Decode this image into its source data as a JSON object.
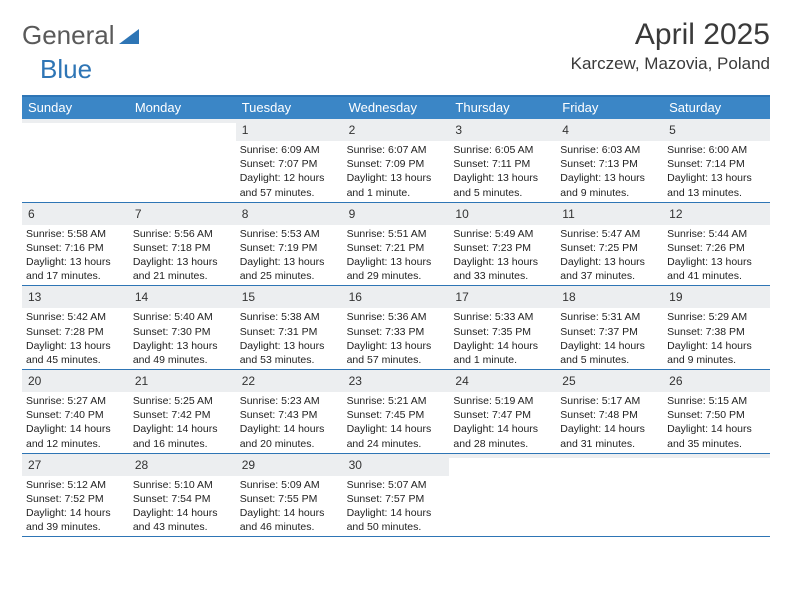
{
  "logo": {
    "text1": "General",
    "text2": "Blue",
    "tri_color": "#2e75b5"
  },
  "title": "April 2025",
  "location": "Karczew, Mazovia, Poland",
  "colors": {
    "header_bg": "#3b86c6",
    "border": "#2e75b5",
    "daynum_bg": "#eceef0"
  },
  "weekdays": [
    "Sunday",
    "Monday",
    "Tuesday",
    "Wednesday",
    "Thursday",
    "Friday",
    "Saturday"
  ],
  "weeks": [
    [
      {
        "n": "",
        "sr": "",
        "ss": "",
        "dl": ""
      },
      {
        "n": "",
        "sr": "",
        "ss": "",
        "dl": ""
      },
      {
        "n": "1",
        "sr": "Sunrise: 6:09 AM",
        "ss": "Sunset: 7:07 PM",
        "dl": "Daylight: 12 hours and 57 minutes."
      },
      {
        "n": "2",
        "sr": "Sunrise: 6:07 AM",
        "ss": "Sunset: 7:09 PM",
        "dl": "Daylight: 13 hours and 1 minute."
      },
      {
        "n": "3",
        "sr": "Sunrise: 6:05 AM",
        "ss": "Sunset: 7:11 PM",
        "dl": "Daylight: 13 hours and 5 minutes."
      },
      {
        "n": "4",
        "sr": "Sunrise: 6:03 AM",
        "ss": "Sunset: 7:13 PM",
        "dl": "Daylight: 13 hours and 9 minutes."
      },
      {
        "n": "5",
        "sr": "Sunrise: 6:00 AM",
        "ss": "Sunset: 7:14 PM",
        "dl": "Daylight: 13 hours and 13 minutes."
      }
    ],
    [
      {
        "n": "6",
        "sr": "Sunrise: 5:58 AM",
        "ss": "Sunset: 7:16 PM",
        "dl": "Daylight: 13 hours and 17 minutes."
      },
      {
        "n": "7",
        "sr": "Sunrise: 5:56 AM",
        "ss": "Sunset: 7:18 PM",
        "dl": "Daylight: 13 hours and 21 minutes."
      },
      {
        "n": "8",
        "sr": "Sunrise: 5:53 AM",
        "ss": "Sunset: 7:19 PM",
        "dl": "Daylight: 13 hours and 25 minutes."
      },
      {
        "n": "9",
        "sr": "Sunrise: 5:51 AM",
        "ss": "Sunset: 7:21 PM",
        "dl": "Daylight: 13 hours and 29 minutes."
      },
      {
        "n": "10",
        "sr": "Sunrise: 5:49 AM",
        "ss": "Sunset: 7:23 PM",
        "dl": "Daylight: 13 hours and 33 minutes."
      },
      {
        "n": "11",
        "sr": "Sunrise: 5:47 AM",
        "ss": "Sunset: 7:25 PM",
        "dl": "Daylight: 13 hours and 37 minutes."
      },
      {
        "n": "12",
        "sr": "Sunrise: 5:44 AM",
        "ss": "Sunset: 7:26 PM",
        "dl": "Daylight: 13 hours and 41 minutes."
      }
    ],
    [
      {
        "n": "13",
        "sr": "Sunrise: 5:42 AM",
        "ss": "Sunset: 7:28 PM",
        "dl": "Daylight: 13 hours and 45 minutes."
      },
      {
        "n": "14",
        "sr": "Sunrise: 5:40 AM",
        "ss": "Sunset: 7:30 PM",
        "dl": "Daylight: 13 hours and 49 minutes."
      },
      {
        "n": "15",
        "sr": "Sunrise: 5:38 AM",
        "ss": "Sunset: 7:31 PM",
        "dl": "Daylight: 13 hours and 53 minutes."
      },
      {
        "n": "16",
        "sr": "Sunrise: 5:36 AM",
        "ss": "Sunset: 7:33 PM",
        "dl": "Daylight: 13 hours and 57 minutes."
      },
      {
        "n": "17",
        "sr": "Sunrise: 5:33 AM",
        "ss": "Sunset: 7:35 PM",
        "dl": "Daylight: 14 hours and 1 minute."
      },
      {
        "n": "18",
        "sr": "Sunrise: 5:31 AM",
        "ss": "Sunset: 7:37 PM",
        "dl": "Daylight: 14 hours and 5 minutes."
      },
      {
        "n": "19",
        "sr": "Sunrise: 5:29 AM",
        "ss": "Sunset: 7:38 PM",
        "dl": "Daylight: 14 hours and 9 minutes."
      }
    ],
    [
      {
        "n": "20",
        "sr": "Sunrise: 5:27 AM",
        "ss": "Sunset: 7:40 PM",
        "dl": "Daylight: 14 hours and 12 minutes."
      },
      {
        "n": "21",
        "sr": "Sunrise: 5:25 AM",
        "ss": "Sunset: 7:42 PM",
        "dl": "Daylight: 14 hours and 16 minutes."
      },
      {
        "n": "22",
        "sr": "Sunrise: 5:23 AM",
        "ss": "Sunset: 7:43 PM",
        "dl": "Daylight: 14 hours and 20 minutes."
      },
      {
        "n": "23",
        "sr": "Sunrise: 5:21 AM",
        "ss": "Sunset: 7:45 PM",
        "dl": "Daylight: 14 hours and 24 minutes."
      },
      {
        "n": "24",
        "sr": "Sunrise: 5:19 AM",
        "ss": "Sunset: 7:47 PM",
        "dl": "Daylight: 14 hours and 28 minutes."
      },
      {
        "n": "25",
        "sr": "Sunrise: 5:17 AM",
        "ss": "Sunset: 7:48 PM",
        "dl": "Daylight: 14 hours and 31 minutes."
      },
      {
        "n": "26",
        "sr": "Sunrise: 5:15 AM",
        "ss": "Sunset: 7:50 PM",
        "dl": "Daylight: 14 hours and 35 minutes."
      }
    ],
    [
      {
        "n": "27",
        "sr": "Sunrise: 5:12 AM",
        "ss": "Sunset: 7:52 PM",
        "dl": "Daylight: 14 hours and 39 minutes."
      },
      {
        "n": "28",
        "sr": "Sunrise: 5:10 AM",
        "ss": "Sunset: 7:54 PM",
        "dl": "Daylight: 14 hours and 43 minutes."
      },
      {
        "n": "29",
        "sr": "Sunrise: 5:09 AM",
        "ss": "Sunset: 7:55 PM",
        "dl": "Daylight: 14 hours and 46 minutes."
      },
      {
        "n": "30",
        "sr": "Sunrise: 5:07 AM",
        "ss": "Sunset: 7:57 PM",
        "dl": "Daylight: 14 hours and 50 minutes."
      },
      {
        "n": "",
        "sr": "",
        "ss": "",
        "dl": ""
      },
      {
        "n": "",
        "sr": "",
        "ss": "",
        "dl": ""
      },
      {
        "n": "",
        "sr": "",
        "ss": "",
        "dl": ""
      }
    ]
  ]
}
